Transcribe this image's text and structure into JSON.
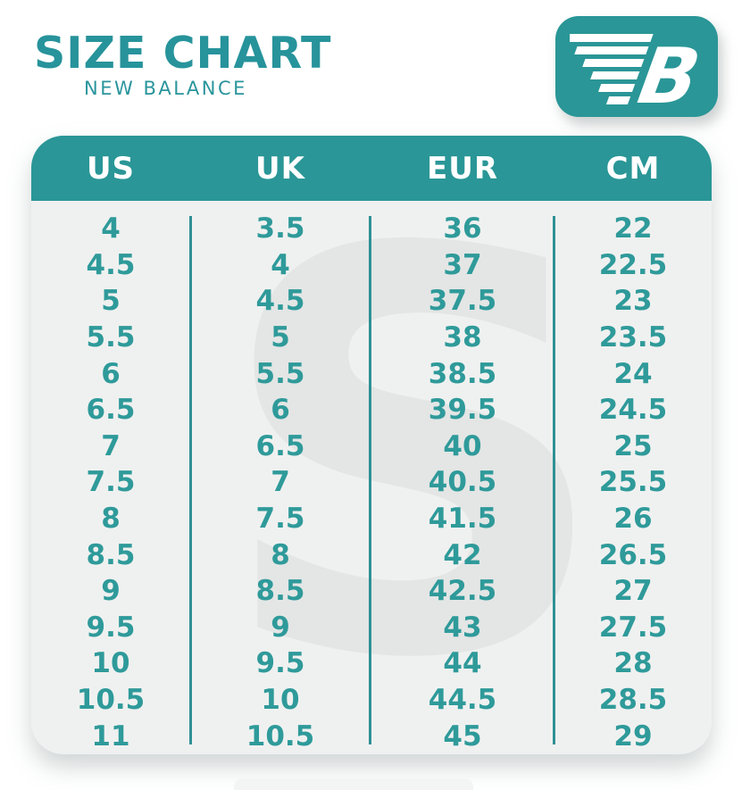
{
  "header": {
    "title": "SIZE CHART",
    "subtitle": "NEW BALANCE"
  },
  "logo": {
    "brand": "New Balance",
    "monogram": "NB",
    "b_glyph": "B"
  },
  "watermark": {
    "glyph": "S"
  },
  "colors": {
    "accent_teal": "#2a9697",
    "title_teal": "#27939b",
    "table_bg": "#eff1f0",
    "watermark_gray": "#e3e6e5",
    "header_text": "#ffffff",
    "cell_text": "#2f9a9a",
    "page_bg": "#ffffff"
  },
  "chart_data": {
    "type": "table",
    "title": "SIZE CHART",
    "subtitle": "NEW BALANCE",
    "columns": [
      "US",
      "UK",
      "EUR",
      "CM"
    ],
    "rows": [
      [
        "4",
        "3.5",
        "36",
        "22"
      ],
      [
        "4.5",
        "4",
        "37",
        "22.5"
      ],
      [
        "5",
        "4.5",
        "37.5",
        "23"
      ],
      [
        "5.5",
        "5",
        "38",
        "23.5"
      ],
      [
        "6",
        "5.5",
        "38.5",
        "24"
      ],
      [
        "6.5",
        "6",
        "39.5",
        "24.5"
      ],
      [
        "7",
        "6.5",
        "40",
        "25"
      ],
      [
        "7.5",
        "7",
        "40.5",
        "25.5"
      ],
      [
        "8",
        "7.5",
        "41.5",
        "26"
      ],
      [
        "8.5",
        "8",
        "42",
        "26.5"
      ],
      [
        "9",
        "8.5",
        "42.5",
        "27"
      ],
      [
        "9.5",
        "9",
        "43",
        "27.5"
      ],
      [
        "10",
        "9.5",
        "44",
        "28"
      ],
      [
        "10.5",
        "10",
        "44.5",
        "28.5"
      ],
      [
        "11",
        "10.5",
        "45",
        "29"
      ]
    ]
  }
}
